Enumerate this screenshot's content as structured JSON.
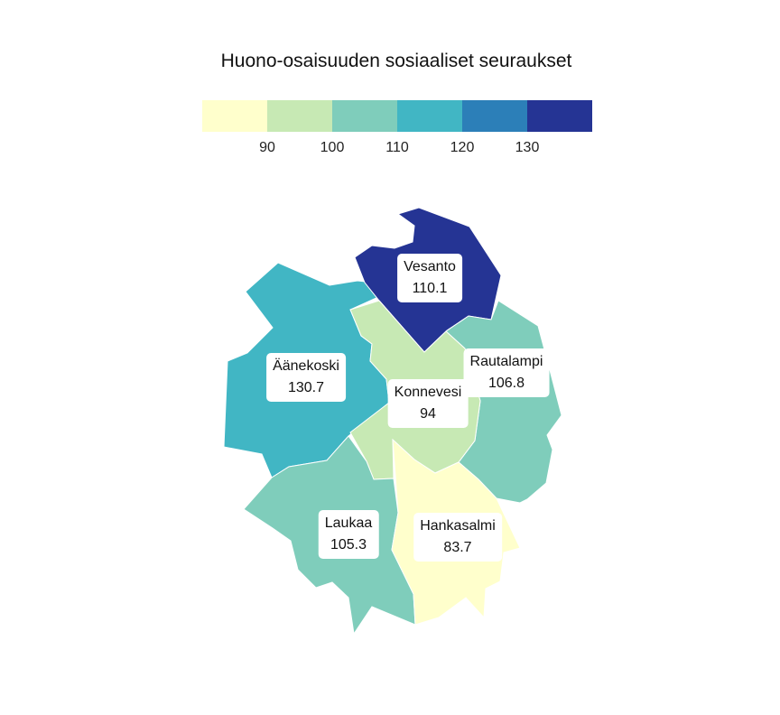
{
  "title": "Huono-osaisuuden sosiaaliset seuraukset",
  "legend": {
    "colors": [
      "#ffffcc",
      "#c7e9b4",
      "#7fcdbb",
      "#41b6c4",
      "#2c7fb8",
      "#253494"
    ],
    "ticks": [
      "90",
      "100",
      "110",
      "120",
      "130"
    ]
  },
  "regions": [
    {
      "name": "Vesanto",
      "value": "110.1",
      "color": "#41b6c4"
    },
    {
      "name": "Äänekoski",
      "value": "130.7",
      "color": "#253494"
    },
    {
      "name": "Rautalampi",
      "value": "106.8",
      "color": "#7fcdbb"
    },
    {
      "name": "Konnevesi",
      "value": "94",
      "color": "#c7e9b4"
    },
    {
      "name": "Laukaa",
      "value": "105.3",
      "color": "#7fcdbb"
    },
    {
      "name": "Hankasalmi",
      "value": "83.7",
      "color": "#ffffcc"
    }
  ]
}
